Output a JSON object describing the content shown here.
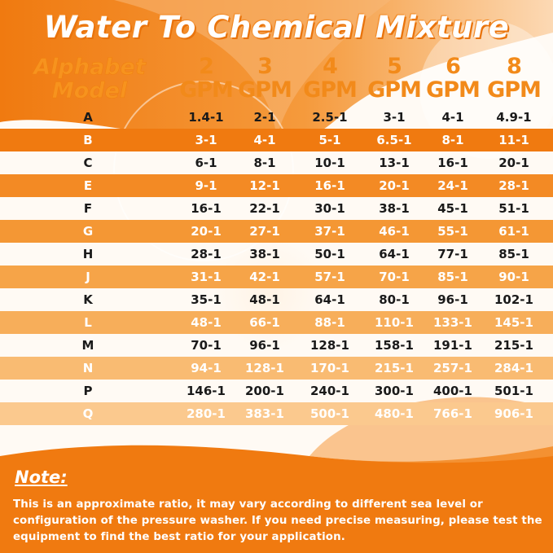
{
  "title": "Water To Chemical Mixture",
  "header": {
    "model_line1": "Alphabet",
    "model_line2": "Model",
    "columns": [
      {
        "num": "2",
        "unit": "GPM"
      },
      {
        "num": "3",
        "unit": "GPM"
      },
      {
        "num": "4",
        "unit": "GPM"
      },
      {
        "num": "5",
        "unit": "GPM"
      },
      {
        "num": "6",
        "unit": "GPM"
      },
      {
        "num": "8",
        "unit": "GPM"
      }
    ]
  },
  "rows": [
    {
      "model": "A",
      "values": [
        "1.4-1",
        "2-1",
        "2.5-1",
        "3-1",
        "4-1",
        "4.9-1"
      ]
    },
    {
      "model": "B",
      "values": [
        "3-1",
        "4-1",
        "5-1",
        "6.5-1",
        "8-1",
        "11-1"
      ]
    },
    {
      "model": "C",
      "values": [
        "6-1",
        "8-1",
        "10-1",
        "13-1",
        "16-1",
        "20-1"
      ]
    },
    {
      "model": "E",
      "values": [
        "9-1",
        "12-1",
        "16-1",
        "20-1",
        "24-1",
        "28-1"
      ]
    },
    {
      "model": "F",
      "values": [
        "16-1",
        "22-1",
        "30-1",
        "38-1",
        "45-1",
        "51-1"
      ]
    },
    {
      "model": "G",
      "values": [
        "20-1",
        "27-1",
        "37-1",
        "46-1",
        "55-1",
        "61-1"
      ]
    },
    {
      "model": "H",
      "values": [
        "28-1",
        "38-1",
        "50-1",
        "64-1",
        "77-1",
        "85-1"
      ]
    },
    {
      "model": "J",
      "values": [
        "31-1",
        "42-1",
        "57-1",
        "70-1",
        "85-1",
        "90-1"
      ]
    },
    {
      "model": "K",
      "values": [
        "35-1",
        "48-1",
        "64-1",
        "80-1",
        "96-1",
        "102-1"
      ]
    },
    {
      "model": "L",
      "values": [
        "48-1",
        "66-1",
        "88-1",
        "110-1",
        "133-1",
        "145-1"
      ]
    },
    {
      "model": "M",
      "values": [
        "70-1",
        "96-1",
        "128-1",
        "158-1",
        "191-1",
        "215-1"
      ]
    },
    {
      "model": "N",
      "values": [
        "94-1",
        "128-1",
        "170-1",
        "215-1",
        "257-1",
        "284-1"
      ]
    },
    {
      "model": "P",
      "values": [
        "146-1",
        "200-1",
        "240-1",
        "300-1",
        "400-1",
        "501-1"
      ]
    },
    {
      "model": "Q",
      "values": [
        "280-1",
        "383-1",
        "500-1",
        "480-1",
        "766-1",
        "906-1"
      ]
    }
  ],
  "note": {
    "title": "Note:",
    "text": "This is an approximate ratio, it may vary according to different sea level or configuration of the pressure washer. If you need precise measuring, please test the equipment to find the best ratio for your application."
  },
  "colors": {
    "orange_dark": "#f07a10",
    "orange_mid": "#f7a04a",
    "orange_light": "#fbd2a6",
    "text_dark": "#1a1a1a",
    "text_white": "#ffffff"
  }
}
